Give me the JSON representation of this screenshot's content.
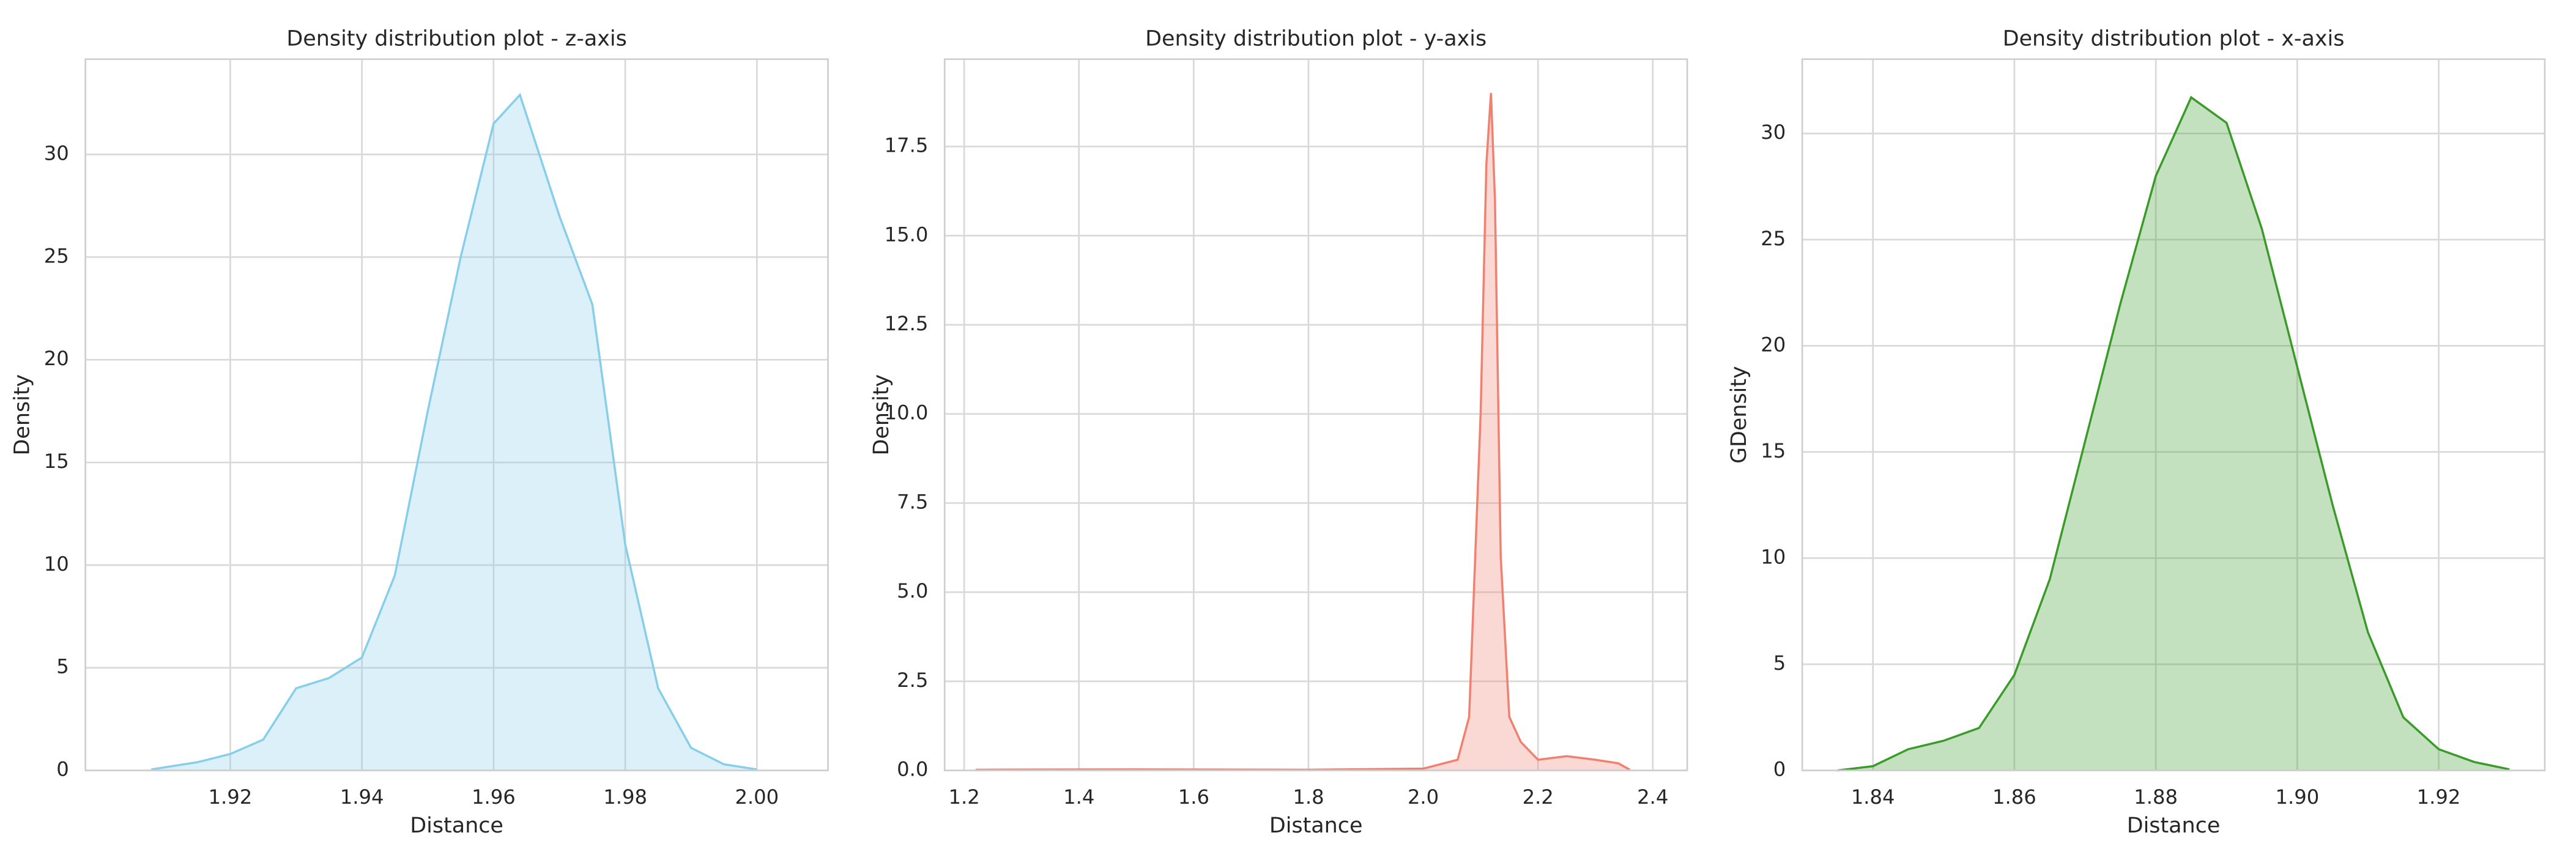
{
  "chart_data": [
    {
      "type": "area",
      "title": "Density distribution plot - z-axis",
      "x_label": "Distance",
      "y_label": "Density",
      "color": "#87ceeb",
      "grid": true,
      "xlim": [
        1.898,
        2.0108
      ],
      "ylim": [
        0,
        34.64
      ],
      "xticks": [
        1.92,
        1.94,
        1.96,
        1.98,
        {
          "value": 2,
          "label": "2.00"
        }
      ],
      "yticks": [
        0,
        5,
        10,
        15,
        20,
        25,
        30
      ],
      "x": [
        1.908,
        1.915,
        1.92,
        1.925,
        1.93,
        1.935,
        1.94,
        1.945,
        1.95,
        1.955,
        1.96,
        1.964,
        1.97,
        1.975,
        1.98,
        1.985,
        1.99,
        1.995,
        2.0
      ],
      "values": [
        0.05,
        0.4,
        0.8,
        1.5,
        4,
        4.5,
        5.5,
        9.5,
        17.5,
        25,
        31.5,
        32.9,
        27,
        22.7,
        11,
        4,
        1.1,
        0.3,
        0.05
      ]
    },
    {
      "type": "area",
      "title": "Density distribution plot - y-axis",
      "x_label": "Distance",
      "y_label": "Density",
      "color": "#f08070",
      "grid": true,
      "xlim": [
        1.166,
        2.46
      ],
      "ylim": [
        0,
        19.95
      ],
      "xticks": [
        1.2,
        1.4,
        1.6,
        1.8,
        {
          "value": 2,
          "label": "2.0"
        },
        2.2,
        2.4
      ],
      "yticks": [
        {
          "value": 0,
          "label": "0.0"
        },
        2.5,
        {
          "value": 5,
          "label": "5.0"
        },
        7.5,
        {
          "value": 10,
          "label": "10.0"
        },
        12.5,
        {
          "value": 15,
          "label": "15.0"
        },
        17.5
      ],
      "x": [
        1.22,
        1.5,
        1.8,
        2.0,
        2.06,
        2.08,
        2.1,
        2.11,
        2.118,
        2.125,
        2.135,
        2.15,
        2.17,
        2.2,
        2.25,
        2.3,
        2.34,
        2.36
      ],
      "values": [
        0.02,
        0.03,
        0.02,
        0.05,
        0.3,
        1.5,
        10,
        17,
        19,
        16,
        6,
        1.5,
        0.8,
        0.3,
        0.4,
        0.3,
        0.2,
        0.02
      ]
    },
    {
      "type": "area",
      "title": "Density distribution plot - x-axis",
      "x_label": "Distance",
      "y_label": "GDensity",
      "color": "#3a9a2a",
      "grid": true,
      "xlim": [
        1.83,
        1.935
      ],
      "ylim": [
        0,
        33.5
      ],
      "xticks": [
        1.84,
        1.86,
        1.88,
        {
          "value": 1.9,
          "label": "1.90"
        },
        1.92
      ],
      "yticks": [
        0,
        5,
        10,
        15,
        20,
        25,
        30
      ],
      "x": [
        1.835,
        1.84,
        1.845,
        1.85,
        1.855,
        1.86,
        1.865,
        1.87,
        1.875,
        1.88,
        1.885,
        1.89,
        1.895,
        1.9,
        1.905,
        1.91,
        1.915,
        1.92,
        1.925,
        1.93
      ],
      "values": [
        0,
        0.2,
        1,
        1.4,
        2,
        4.5,
        9,
        15.5,
        22,
        28,
        31.7,
        30.5,
        25.5,
        19,
        12.5,
        6.5,
        2.5,
        1,
        0.4,
        0.05
      ]
    }
  ]
}
